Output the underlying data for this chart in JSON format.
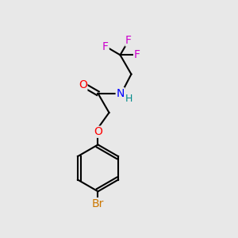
{
  "background_color": "#e8e8e8",
  "atom_colors": {
    "C": "#000000",
    "O": "#ff0000",
    "N": "#0000ff",
    "H": "#008b8b",
    "F": "#cc00cc",
    "Br": "#cc7700"
  },
  "figsize": [
    3.0,
    3.0
  ],
  "dpi": 100,
  "bond_lw": 1.5,
  "font_size": 10
}
